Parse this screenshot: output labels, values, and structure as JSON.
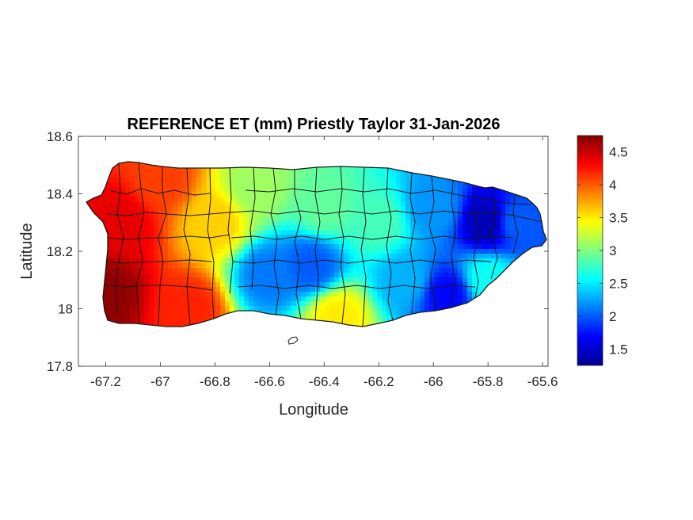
{
  "figure": {
    "title": "REFERENCE ET (mm) Priestly Taylor 31-Jan-2026",
    "xlabel": "Longitude",
    "ylabel": "Latitude"
  },
  "chart_data": {
    "type": "heatmap",
    "title": "REFERENCE ET (mm) Priestly Taylor 31-Jan-2026",
    "xlabel": "Longitude",
    "ylabel": "Latitude",
    "xlim": [
      -67.3,
      -65.58
    ],
    "ylim": [
      17.8,
      18.6
    ],
    "x_ticks": [
      -67.2,
      -67,
      -66.8,
      -66.6,
      -66.4,
      -66.2,
      -66,
      -65.8,
      -65.6
    ],
    "x_tick_labels": [
      "-67.2",
      "-67",
      "-66.8",
      "-66.6",
      "-66.4",
      "-66.2",
      "-66",
      "-65.8",
      "-65.6"
    ],
    "y_ticks": [
      18.6,
      18.4,
      18.2,
      18.0,
      17.8
    ],
    "y_tick_labels": [
      "18.6",
      "18.4",
      "18.2",
      "18",
      "17.8"
    ],
    "colorbar": {
      "colormap": "jet",
      "range": [
        1.25,
        4.75
      ],
      "ticks": [
        4.5,
        4,
        3.5,
        3,
        2.5,
        2,
        1.5
      ],
      "tick_labels": [
        "4.5",
        "4",
        "3.5",
        "3",
        "2.5",
        "2",
        "1.5"
      ]
    },
    "grid": false,
    "field": {
      "description_of_pattern": "west high, east low",
      "anchors": [
        {
          "lon": -67.2,
          "lat": 18.05,
          "value": 4.7
        },
        {
          "lon": -67.15,
          "lat": 18.3,
          "value": 4.4
        },
        {
          "lon": -67.0,
          "lat": 18.45,
          "value": 4.1
        },
        {
          "lon": -66.9,
          "lat": 18.0,
          "value": 4.2
        },
        {
          "lon": -66.8,
          "lat": 18.3,
          "value": 3.6
        },
        {
          "lon": -66.65,
          "lat": 18.42,
          "value": 3.1
        },
        {
          "lon": -66.6,
          "lat": 18.12,
          "value": 2.1
        },
        {
          "lon": -66.45,
          "lat": 18.15,
          "value": 2.0
        },
        {
          "lon": -66.4,
          "lat": 18.35,
          "value": 2.9
        },
        {
          "lon": -66.35,
          "lat": 17.97,
          "value": 3.5
        },
        {
          "lon": -66.2,
          "lat": 18.3,
          "value": 2.8
        },
        {
          "lon": -66.1,
          "lat": 18.1,
          "value": 2.3
        },
        {
          "lon": -66.0,
          "lat": 18.35,
          "value": 2.2
        },
        {
          "lon": -65.95,
          "lat": 18.05,
          "value": 1.7
        },
        {
          "lon": -65.8,
          "lat": 18.3,
          "value": 1.4
        },
        {
          "lon": -65.7,
          "lat": 18.3,
          "value": 2.0
        },
        {
          "lon": -65.8,
          "lat": 18.1,
          "value": 2.6
        }
      ]
    }
  }
}
